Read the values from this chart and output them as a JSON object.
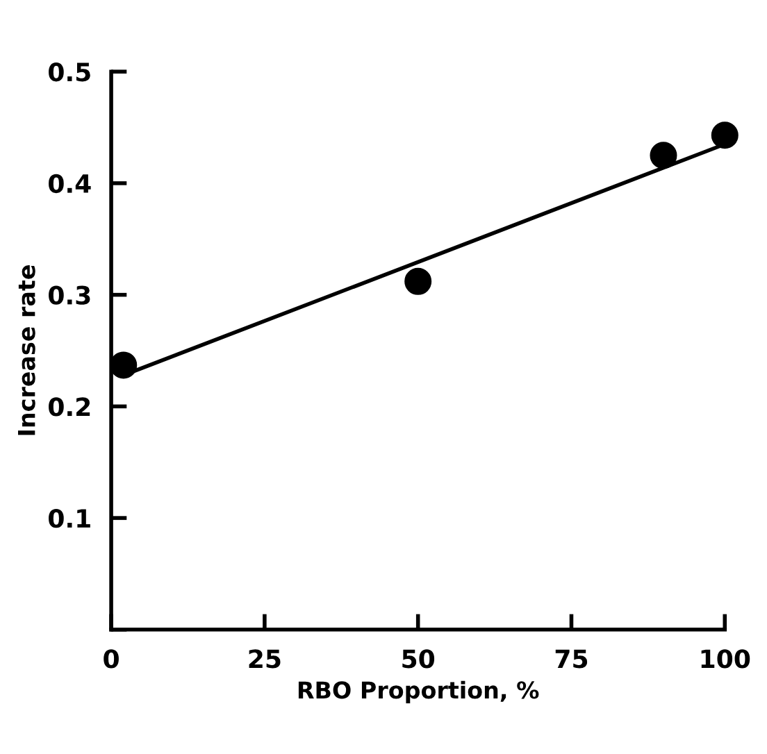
{
  "chart_data": {
    "type": "scatter",
    "xlabel": "RBO Proportion, %",
    "ylabel": "Increase rate",
    "xlim": [
      0,
      100
    ],
    "xticks": [
      0,
      25,
      50,
      75,
      100
    ],
    "ylim": [
      0,
      0.5
    ],
    "yticks": [
      {
        "value": 0,
        "label": null
      },
      0.1,
      0.2,
      0.3,
      0.4,
      0.5
    ],
    "grid": false,
    "legend": false,
    "marker": "circle",
    "series": [
      {
        "color": "#000000",
        "x": [
          2,
          50,
          90,
          100
        ],
        "values": [
          0.237,
          0.312,
          0.425,
          0.443
        ]
      },
      {
        "type": "line",
        "color": "#000000",
        "line_style": "solid",
        "marker": "none",
        "x": [
          2,
          100
        ],
        "values": [
          0.228,
          0.435
        ]
      }
    ]
  }
}
